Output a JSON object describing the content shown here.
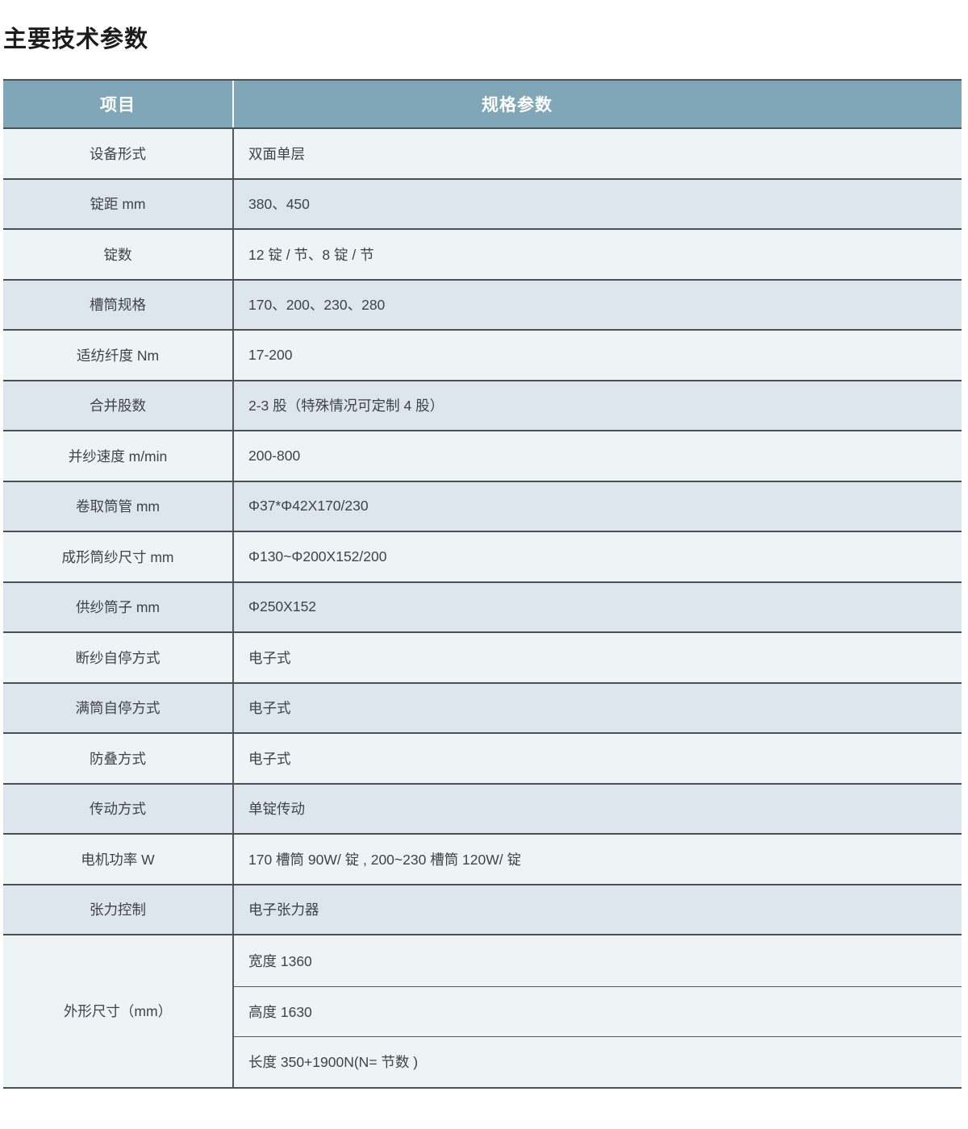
{
  "page": {
    "title": "主要技术参数",
    "colors": {
      "header_bg": "#80a7b8",
      "header_text": "#ffffff",
      "row_light": "#eef3f6",
      "row_dark": "#dde6ed",
      "border": "#4b5054",
      "body_text": "#3f4449",
      "bottom_strip": "#fafcfe"
    }
  },
  "table": {
    "headers": {
      "item": "项目",
      "spec": "规格参数"
    },
    "rows": [
      {
        "label": "设备形式",
        "value": "双面单层"
      },
      {
        "label": "锭距 mm",
        "value": "380、450"
      },
      {
        "label": "锭数",
        "value": "12 锭 / 节、8 锭 / 节"
      },
      {
        "label": "槽筒规格",
        "value": "170、200、230、280"
      },
      {
        "label": "适纺纤度 Nm",
        "value": "17-200"
      },
      {
        "label": "合并股数",
        "value": "2-3 股（特殊情况可定制 4 股）"
      },
      {
        "label": "并纱速度 m/min",
        "value": "200-800"
      },
      {
        "label": "卷取筒管 mm",
        "value": "Φ37*Φ42X170/230"
      },
      {
        "label": "成形筒纱尺寸 mm",
        "value": "Φ130~Φ200X152/200"
      },
      {
        "label": "供纱筒子 mm",
        "value": "Φ250X152"
      },
      {
        "label": "断纱自停方式",
        "value": "电子式"
      },
      {
        "label": "满筒自停方式",
        "value": "电子式"
      },
      {
        "label": "防叠方式",
        "value": "电子式"
      },
      {
        "label": "传动方式",
        "value": "单锭传动"
      },
      {
        "label": "电机功率 W",
        "value": "170 槽筒 90W/ 锭 , 200~230 槽筒 120W/ 锭"
      },
      {
        "label": "张力控制",
        "value": "电子张力器"
      }
    ],
    "merged_row": {
      "label": "外形尺寸（mm）",
      "values": [
        "宽度 1360",
        "高度 1630",
        "长度 350+1900N(N= 节数 )"
      ]
    }
  }
}
